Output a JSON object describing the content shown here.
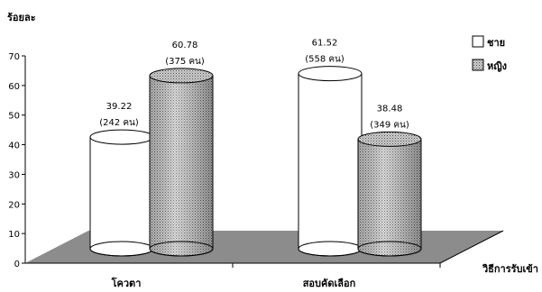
{
  "chart_data": {
    "type": "bar",
    "ylabel": "ร้อยละ",
    "xlabel": "วิธีการรับเข้า",
    "ylim": [
      0,
      70
    ],
    "yticks": [
      0,
      10,
      20,
      30,
      40,
      50,
      60,
      70
    ],
    "categories": [
      "โควตา",
      "สอบคัดเลือก"
    ],
    "series": [
      {
        "name": "ชาย",
        "values": [
          39.22,
          61.52
        ],
        "counts": [
          "(242 คน)",
          "(558 คน)"
        ],
        "color": "#ffffff"
      },
      {
        "name": "หญิง",
        "values": [
          60.78,
          38.48
        ],
        "counts": [
          "(375 คน)",
          "(349 คน)"
        ],
        "color": "#b5b5b5"
      }
    ],
    "value_labels": [
      [
        "39.22",
        "61.52"
      ],
      [
        "60.78",
        "38.48"
      ]
    ],
    "legend_position": "top-right",
    "floor_color": "#8c8c8c",
    "grid": false
  }
}
